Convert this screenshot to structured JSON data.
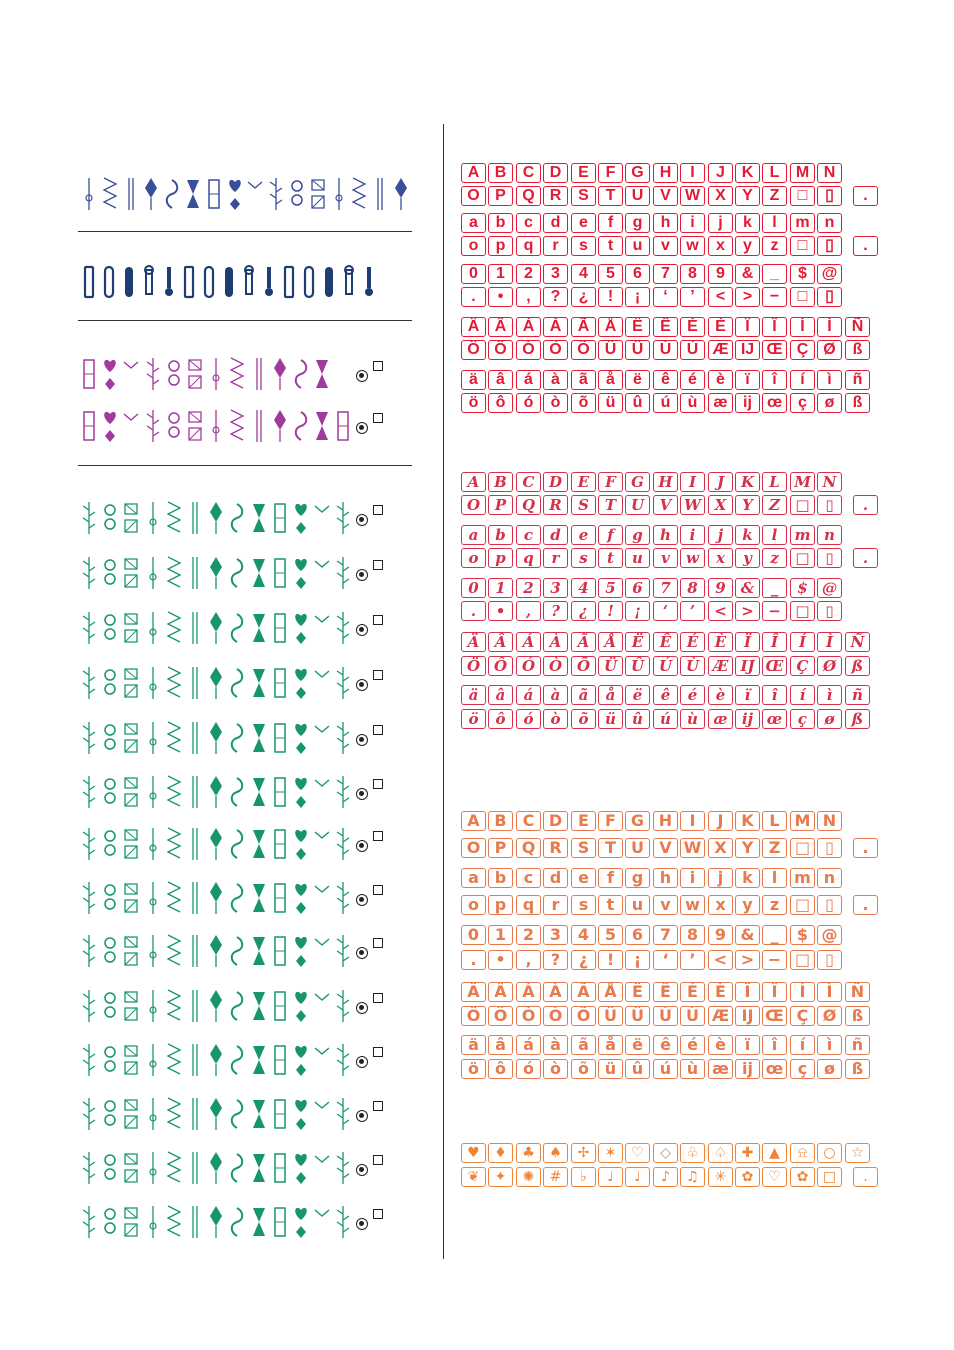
{
  "colors": {
    "utility_blue": "#3a4e9a",
    "buttonhole_navy": "#1d3d73",
    "satin_purple": "#a03a9c",
    "decorative_green": "#16956e",
    "font1_red": "#e31b35",
    "font2_red": "#d6304a",
    "font3_orange": "#e87a4e",
    "symbols_orange": "#ef8336",
    "rule": "#333333"
  },
  "stitch_groups": [
    {
      "name": "utility",
      "color_key": "utility_blue",
      "rows": [
        {
          "count": 16,
          "marks": false
        }
      ]
    },
    {
      "name": "buttonholes",
      "color_key": "buttonhole_navy",
      "rows": [
        {
          "count": 15,
          "marks": false
        }
      ]
    },
    {
      "name": "satin",
      "color_key": "satin_purple",
      "rows": [
        {
          "count": 12,
          "marks": true
        },
        {
          "count": 13,
          "marks": true
        }
      ]
    },
    {
      "name": "decorative",
      "color_key": "decorative_green",
      "rows": [
        {
          "count": 13,
          "marks": true
        },
        {
          "count": 13,
          "marks": true
        },
        {
          "count": 13,
          "marks": true
        },
        {
          "count": 13,
          "marks": true
        },
        {
          "count": 13,
          "marks": true
        },
        {
          "count": 13,
          "marks": true
        },
        {
          "count": 13,
          "marks": true
        },
        {
          "count": 13,
          "marks": true
        },
        {
          "count": 13,
          "marks": true
        },
        {
          "count": 13,
          "marks": true
        },
        {
          "count": 13,
          "marks": true
        },
        {
          "count": 13,
          "marks": true
        },
        {
          "count": 13,
          "marks": true
        },
        {
          "count": 13,
          "marks": true
        }
      ]
    }
  ],
  "font_blocks": [
    {
      "name": "block-font",
      "color_key": "font1_red",
      "rows": [
        [
          "A",
          "B",
          "C",
          "D",
          "E",
          "F",
          "G",
          "H",
          "I",
          "J",
          "K",
          "L",
          "M",
          "N"
        ],
        [
          "O",
          "P",
          "Q",
          "R",
          "S",
          "T",
          "U",
          "V",
          "W",
          "X",
          "Y",
          "Z",
          "□",
          "▯",
          "."
        ],
        [
          "a",
          "b",
          "c",
          "d",
          "e",
          "f",
          "g",
          "h",
          "i",
          "j",
          "k",
          "l",
          "m",
          "n"
        ],
        [
          "o",
          "p",
          "q",
          "r",
          "s",
          "t",
          "u",
          "v",
          "w",
          "x",
          "y",
          "z",
          "□",
          "▯",
          "."
        ],
        [
          "0",
          "1",
          "2",
          "3",
          "4",
          "5",
          "6",
          "7",
          "8",
          "9",
          "&",
          "_",
          "$",
          "@"
        ],
        [
          ".",
          "•",
          ",",
          "?",
          "¿",
          "!",
          "¡",
          "‘",
          "’",
          "<",
          ">",
          "−",
          "□",
          "▯"
        ],
        [
          "Ä",
          "Â",
          "Á",
          "À",
          "Ã",
          "Å",
          "Ë",
          "Ê",
          "É",
          "È",
          "Ï",
          "Î",
          "Í",
          "Ì",
          "Ñ"
        ],
        [
          "Ö",
          "Ô",
          "Ó",
          "Ò",
          "Õ",
          "Ü",
          "Û",
          "Ú",
          "Ù",
          "Æ",
          "IJ",
          "Œ",
          "Ç",
          "Ø",
          "ß"
        ],
        [
          "ä",
          "â",
          "á",
          "à",
          "ã",
          "å",
          "ë",
          "ê",
          "é",
          "è",
          "ï",
          "î",
          "í",
          "ì",
          "ñ"
        ],
        [
          "ö",
          "ô",
          "ó",
          "ò",
          "õ",
          "ü",
          "û",
          "ú",
          "ù",
          "æ",
          "ij",
          "œ",
          "ç",
          "ø",
          "ß"
        ]
      ]
    },
    {
      "name": "script-font",
      "color_key": "font2_red",
      "rows": [
        [
          "A",
          "B",
          "C",
          "D",
          "E",
          "F",
          "G",
          "H",
          "I",
          "J",
          "K",
          "L",
          "M",
          "N"
        ],
        [
          "O",
          "P",
          "Q",
          "R",
          "S",
          "T",
          "U",
          "V",
          "W",
          "X",
          "Y",
          "Z",
          "□",
          "▯",
          "."
        ],
        [
          "a",
          "b",
          "c",
          "d",
          "e",
          "f",
          "g",
          "h",
          "i",
          "j",
          "k",
          "l",
          "m",
          "n"
        ],
        [
          "o",
          "p",
          "q",
          "r",
          "s",
          "t",
          "u",
          "v",
          "w",
          "x",
          "y",
          "z",
          "□",
          "▯",
          "."
        ],
        [
          "0",
          "1",
          "2",
          "3",
          "4",
          "5",
          "6",
          "7",
          "8",
          "9",
          "&",
          "_",
          "$",
          "@"
        ],
        [
          ".",
          "•",
          ",",
          "?",
          "¿",
          "!",
          "¡",
          "‘",
          "’",
          "<",
          ">",
          "−",
          "□",
          "▯"
        ],
        [
          "Ä",
          "Â",
          "Á",
          "À",
          "Ã",
          "Å",
          "Ë",
          "Ê",
          "É",
          "È",
          "Ï",
          "Î",
          "Í",
          "Ì",
          "Ñ"
        ],
        [
          "Ö",
          "Ô",
          "Ó",
          "Ò",
          "Õ",
          "Ü",
          "Û",
          "Ú",
          "Ù",
          "Æ",
          "IJ",
          "Œ",
          "Ç",
          "Ø",
          "ß"
        ],
        [
          "ä",
          "â",
          "á",
          "à",
          "ã",
          "å",
          "ë",
          "ê",
          "é",
          "è",
          "ï",
          "î",
          "í",
          "ì",
          "ñ"
        ],
        [
          "ö",
          "ô",
          "ó",
          "ò",
          "õ",
          "ü",
          "û",
          "ú",
          "ù",
          "æ",
          "ij",
          "œ",
          "ç",
          "ø",
          "ß"
        ]
      ]
    },
    {
      "name": "outline-font",
      "color_key": "font3_orange",
      "rows": [
        [
          "A",
          "B",
          "C",
          "D",
          "E",
          "F",
          "G",
          "H",
          "I",
          "J",
          "K",
          "L",
          "M",
          "N"
        ],
        [
          "O",
          "P",
          "Q",
          "R",
          "S",
          "T",
          "U",
          "V",
          "W",
          "X",
          "Y",
          "Z",
          "□",
          "▯",
          "."
        ],
        [
          "a",
          "b",
          "c",
          "d",
          "e",
          "f",
          "g",
          "h",
          "i",
          "j",
          "k",
          "l",
          "m",
          "n"
        ],
        [
          "o",
          "p",
          "q",
          "r",
          "s",
          "t",
          "u",
          "v",
          "w",
          "x",
          "y",
          "z",
          "□",
          "▯",
          "."
        ],
        [
          "0",
          "1",
          "2",
          "3",
          "4",
          "5",
          "6",
          "7",
          "8",
          "9",
          "&",
          "_",
          "$",
          "@"
        ],
        [
          ".",
          "•",
          ",",
          "?",
          "¿",
          "!",
          "¡",
          "‘",
          "’",
          "<",
          ">",
          "−",
          "□",
          "▯"
        ],
        [
          "Ä",
          "Â",
          "Á",
          "À",
          "Ã",
          "Å",
          "Ë",
          "Ê",
          "É",
          "È",
          "Ï",
          "Î",
          "Í",
          "Ì",
          "Ñ"
        ],
        [
          "Ö",
          "Ô",
          "Ó",
          "Ò",
          "Õ",
          "Ü",
          "Û",
          "Ú",
          "Ù",
          "Æ",
          "IJ",
          "Œ",
          "Ç",
          "Ø",
          "ß"
        ],
        [
          "ä",
          "â",
          "á",
          "à",
          "ã",
          "å",
          "ë",
          "ê",
          "é",
          "è",
          "ï",
          "î",
          "í",
          "ì",
          "ñ"
        ],
        [
          "ö",
          "ô",
          "ó",
          "ò",
          "õ",
          "ü",
          "û",
          "ú",
          "ù",
          "æ",
          "ij",
          "œ",
          "ç",
          "ø",
          "ß"
        ]
      ]
    },
    {
      "name": "symbols",
      "color_key": "symbols_orange",
      "rows": [
        [
          "♥",
          "♦",
          "♣",
          "♠",
          "✢",
          "✶",
          "♡",
          "◇",
          "♧",
          "♤",
          "✚",
          "▲",
          "⍾",
          "○",
          "☆"
        ],
        [
          "❦",
          "✦",
          "✺",
          "#",
          "♭",
          "♩",
          "♩",
          "♪",
          "♫",
          "✳",
          "✿",
          "♡",
          "✿",
          "□",
          "."
        ]
      ]
    }
  ]
}
